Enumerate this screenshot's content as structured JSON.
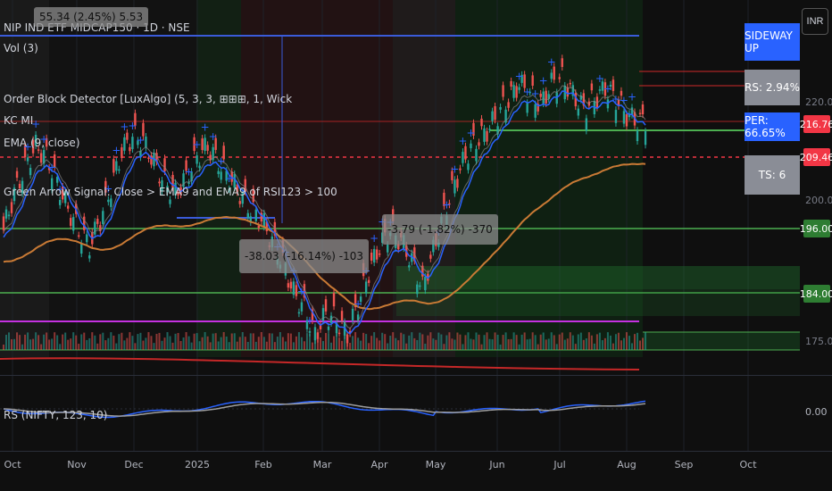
{
  "chart_data": {
    "type": "candlestick",
    "currency": "INR",
    "legend": [
      "NIP IND ETF MIDCAP150 · 1D · NSE",
      "Vol (3)",
      "Order Block Detector [LuxAlgo] (5, 3, 3, ⊞⊞⊞, 1, Wick",
      "KC  MI",
      "EMA (9, close)",
      "Green Arrow Signal: Close > EMA9 and EMA9 of RSI123 > 100"
    ],
    "ohlc_top": "55.34 (2.45%) 5.53",
    "x_ticks": [
      "Oct",
      "Nov",
      "Dec",
      "2025",
      "Feb",
      "Mar",
      "Apr",
      "May",
      "Jun",
      "Jul",
      "Aug",
      "Sep",
      "Oct"
    ],
    "y_ticks": [
      "220.00",
      "200.00",
      "175.00"
    ],
    "price_tags": [
      {
        "value": "216.76",
        "color": "#f23645"
      },
      {
        "value": "209.46",
        "color": "#f23645"
      },
      {
        "value": "196.00",
        "color": "#2e7d32"
      },
      {
        "value": "184.00",
        "color": "#2e7d32"
      }
    ],
    "status_panel": {
      "trend": "SIDEWAY UP",
      "rs": "RS: 2.94%",
      "per": "PER: 66.65%",
      "ts": "TS: 6"
    },
    "measure_boxes": [
      {
        "text": "-38.03 (-16.14%) -103"
      },
      {
        "text": "-3.79 (-1.82%) -370"
      }
    ],
    "rs_panel": {
      "label": "RS (NIFTY, 123, 10)",
      "y_tick": "0.00"
    },
    "close_series": [
      196,
      203,
      208,
      212,
      210,
      205,
      200,
      196,
      193,
      198,
      204,
      211,
      214,
      213,
      209,
      205,
      203,
      206,
      210,
      212,
      209,
      206,
      203,
      200,
      198,
      194,
      190,
      184,
      181,
      176,
      180,
      179,
      176,
      182,
      188,
      193,
      196,
      194,
      190,
      185,
      192,
      199,
      205,
      210,
      213,
      215,
      218,
      221,
      224,
      222,
      220,
      224,
      225,
      222,
      219,
      221,
      223,
      221,
      218,
      216.76
    ],
    "colors": {
      "up": "#26a69a",
      "down": "#ef5350",
      "buy_marker": "#2962ff",
      "ema": "#2962ff",
      "kc": "#d08a40",
      "resistance": "#c431e0",
      "support": "#4caf50"
    }
  }
}
